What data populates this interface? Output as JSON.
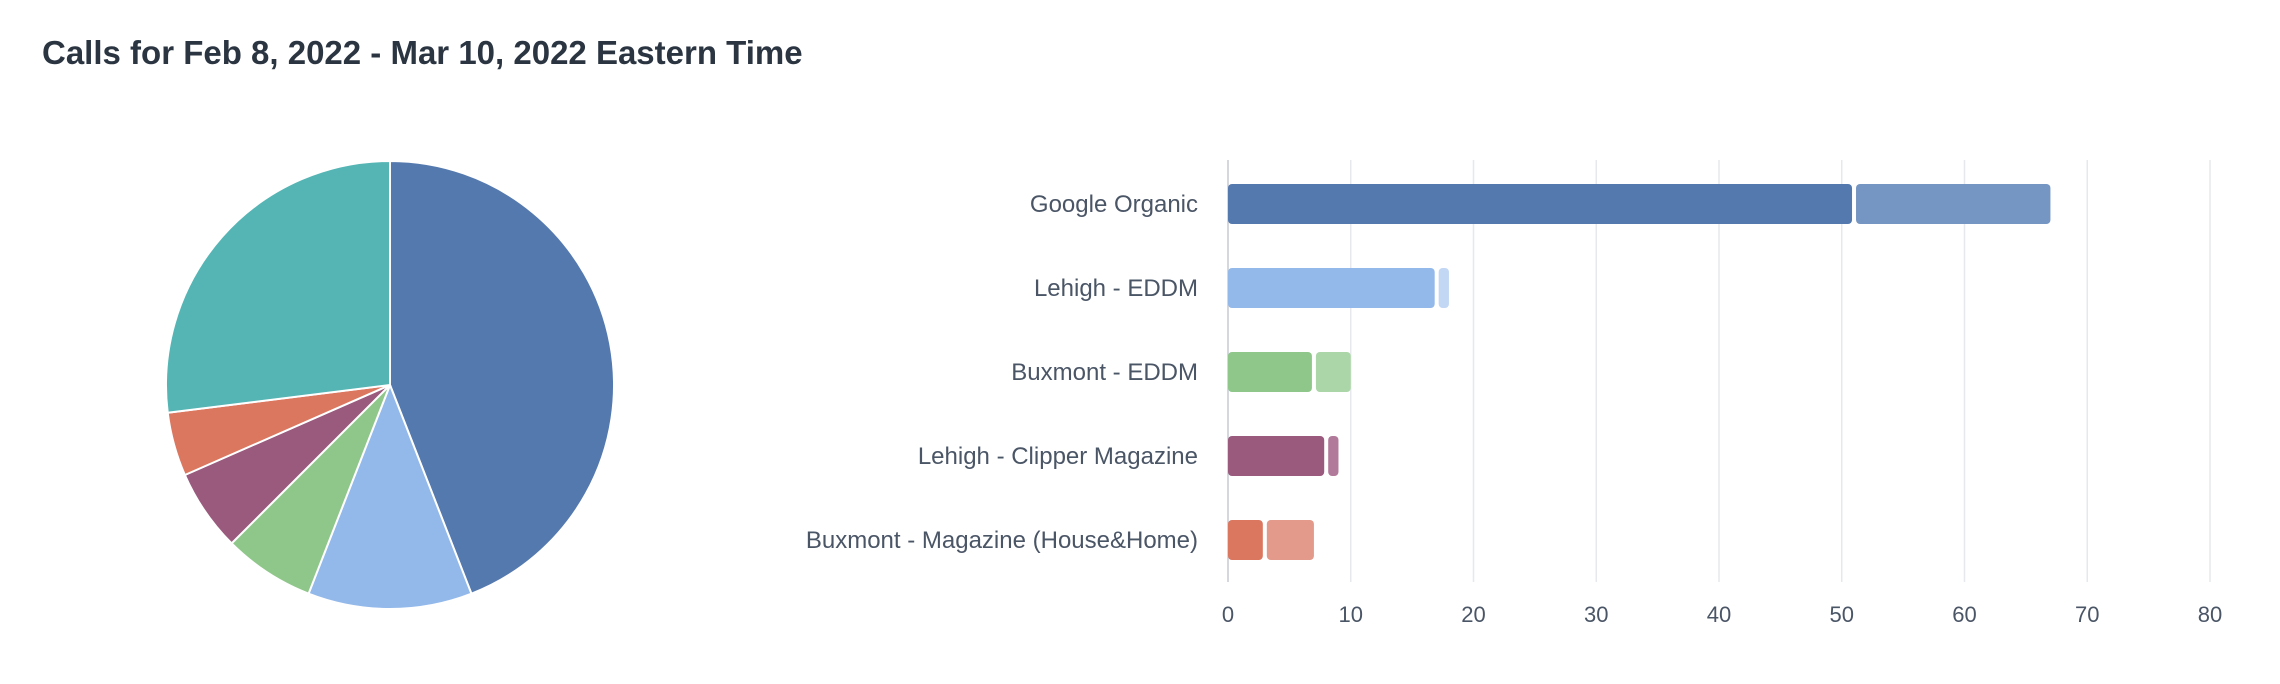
{
  "header": {
    "title": "Calls for Feb 8, 2022 - Mar 10, 2022 Eastern Time"
  },
  "chart_data": [
    {
      "type": "pie",
      "slices": [
        {
          "label": "Google Organic",
          "value": 67,
          "color": "#5479ae"
        },
        {
          "label": "Lehigh - EDDM",
          "value": 18,
          "color": "#93b8ea"
        },
        {
          "label": "Buxmont - EDDM",
          "value": 10,
          "color": "#8fc68a"
        },
        {
          "label": "Lehigh - Clipper Magazine",
          "value": 9,
          "color": "#9a5a7d"
        },
        {
          "label": "Buxmont - Magazine (House&Home)",
          "value": 7,
          "color": "#db765f"
        },
        {
          "label": "",
          "value": 41,
          "color": "#55b4b4"
        }
      ]
    },
    {
      "type": "bar",
      "orientation": "horizontal",
      "stacked": true,
      "categories": [
        "Google Organic",
        "Lehigh - EDDM",
        "Buxmont - EDDM",
        "Lehigh - Clipper Magazine",
        "Buxmont - Magazine (House&Home)"
      ],
      "series": [
        {
          "values": [
            51,
            17,
            7,
            8,
            3
          ]
        },
        {
          "values": [
            16,
            1,
            3,
            1,
            4
          ]
        }
      ],
      "colors": [
        [
          "#5479ae",
          "#7596c2"
        ],
        [
          "#93b8ea",
          "#c2d7f3"
        ],
        [
          "#8fc68a",
          "#abd6a7"
        ],
        [
          "#9a5a7d",
          "#b27a9a"
        ],
        [
          "#db765f",
          "#e39a8a"
        ]
      ],
      "xlim": [
        0,
        80
      ],
      "xticks": [
        "0",
        "10",
        "20",
        "30",
        "40",
        "50",
        "60",
        "70",
        "80"
      ],
      "grid": true
    }
  ]
}
